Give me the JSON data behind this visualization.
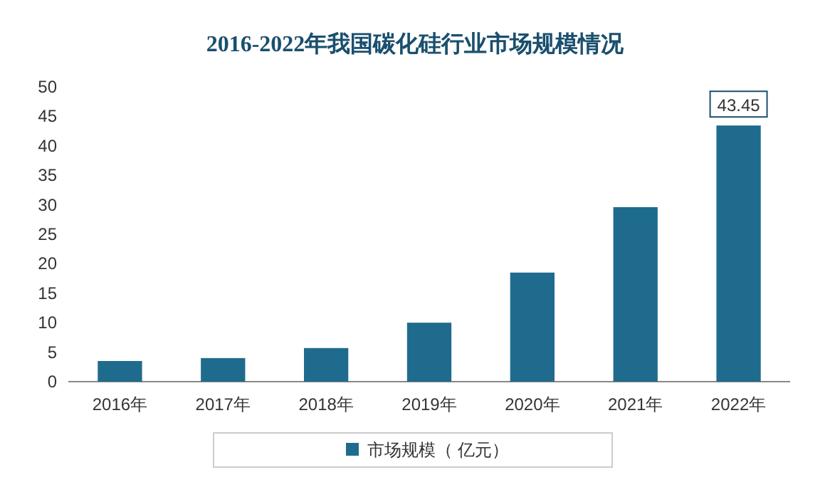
{
  "chart_data": {
    "type": "bar",
    "title": "2016-2022年我国碳化硅行业市场规模情况",
    "categories": [
      "2016年",
      "2017年",
      "2018年",
      "2019年",
      "2020年",
      "2021年",
      "2022年"
    ],
    "series": [
      {
        "name": "市场规模（ 亿元）",
        "color": "#1f6b8e",
        "values": [
          3.5,
          4.0,
          5.7,
          10.0,
          18.5,
          29.6,
          43.45
        ],
        "value_labels": [
          null,
          null,
          null,
          null,
          null,
          null,
          "43.45"
        ]
      }
    ],
    "ylim": [
      0,
      50
    ],
    "yticks": [
      0,
      5,
      10,
      15,
      20,
      25,
      30,
      35,
      40,
      45,
      50
    ],
    "grid": false,
    "legend": "bottom"
  }
}
